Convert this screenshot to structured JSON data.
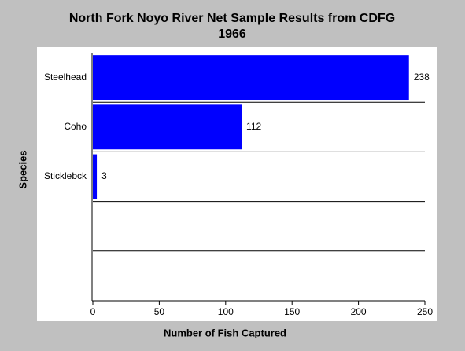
{
  "chart_data": {
    "type": "hbar",
    "title": "North Fork Noyo River Net Sample Results from CDFG",
    "subtitle": "1966",
    "xlabel": "Number of Fish Captured",
    "ylabel": "Species",
    "categories": [
      "Steelhead",
      "Coho",
      "Sticklebck",
      null,
      null
    ],
    "values": [
      238,
      112,
      3,
      null,
      null
    ],
    "color": "#0000ff",
    "xlim": [
      0,
      250
    ],
    "xticks": [
      0,
      50,
      100,
      150,
      200,
      250
    ]
  }
}
